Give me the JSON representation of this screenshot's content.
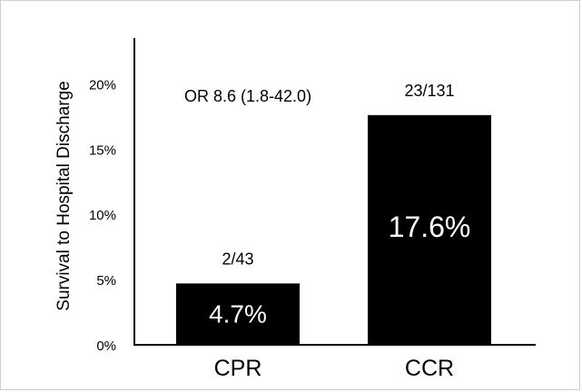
{
  "chart_data": {
    "type": "bar",
    "categories": [
      "CPR",
      "CCR"
    ],
    "values": [
      4.7,
      17.6
    ],
    "value_labels": [
      "4.7%",
      "17.6%"
    ],
    "count_labels": [
      "2/43",
      "23/131"
    ],
    "ylabel": "Survival to Hospital Discharge",
    "yticks": [
      "0%",
      "5%",
      "10%",
      "15%",
      "20%"
    ],
    "ytick_values": [
      0,
      5,
      10,
      15,
      20
    ],
    "ylim": [
      0,
      23.5
    ],
    "annotation": "OR 8.6 (1.8-42.0)",
    "bar_color": "#000000",
    "value_label_color": "#ffffff",
    "grid": false
  }
}
